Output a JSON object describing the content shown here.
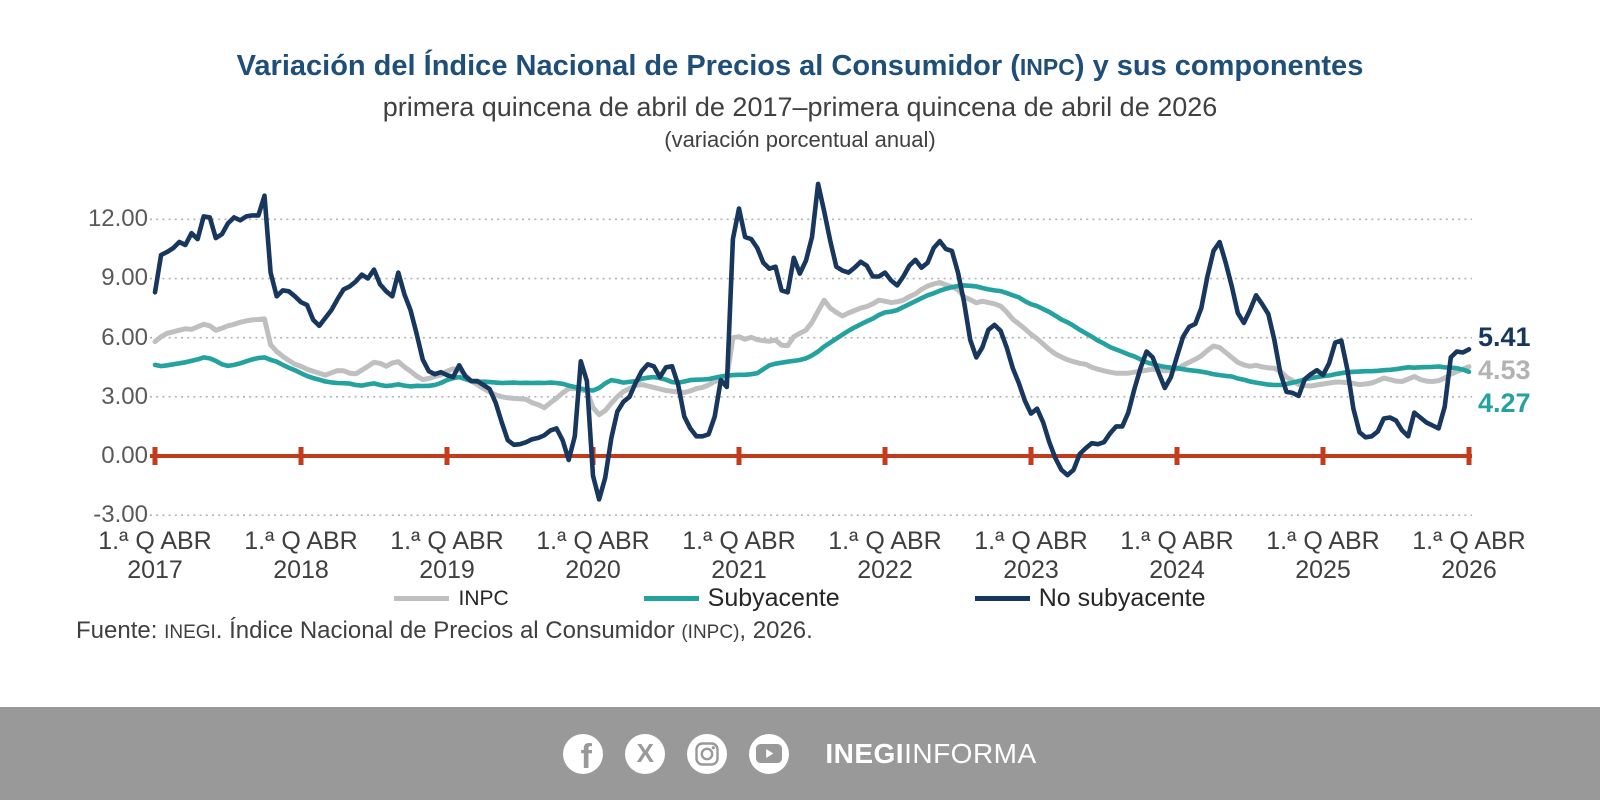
{
  "theme": {
    "title_color": "#1f4e79",
    "text_color": "#404040",
    "ytick_color": "#595959",
    "gridline_color": "#b3b3b3",
    "zero_axis_color": "#c23b1c",
    "footer_bg": "#999999",
    "background": "#ffffff"
  },
  "chart_data": {
    "type": "line",
    "title_pre": "Variación del Índice Nacional de Precios al Consumidor (",
    "title_acronym": "INPC",
    "title_post": ") y sus componentes",
    "subtitle": "primera quincena de abril de 2017–primera quincena de abril de 2026",
    "note": "(variación porcentual anual)",
    "unit": "%",
    "x_frequency": "quincenal (24 puntos por año, de 1.ª Q ABR 2017 a 1.ª Q ABR 2026)",
    "ylim": [
      -3,
      12
    ],
    "grid": "horizontal-dotted",
    "legend_position": "bottom-center",
    "y_ticks": [
      12,
      9,
      6,
      3,
      0,
      -3
    ],
    "y_tick_labels": [
      "12.00",
      "9.00",
      "6.00",
      "3.00",
      "0.00",
      "-3.00"
    ],
    "x_ticks": [
      {
        "label": "1.ª Q ABR",
        "year": "2017"
      },
      {
        "label": "1.ª Q ABR",
        "year": "2018"
      },
      {
        "label": "1.ª Q ABR",
        "year": "2019"
      },
      {
        "label": "1.ª Q ABR",
        "year": "2020"
      },
      {
        "label": "1.ª Q ABR",
        "year": "2021"
      },
      {
        "label": "1.ª Q ABR",
        "year": "2022"
      },
      {
        "label": "1.ª Q ABR",
        "year": "2023"
      },
      {
        "label": "1.ª Q ABR",
        "year": "2024"
      },
      {
        "label": "1.ª Q ABR",
        "year": "2025"
      },
      {
        "label": "1.ª Q ABR",
        "year": "2026"
      }
    ],
    "zero_axis_color": "#c23b1c",
    "series": [
      {
        "name": "INPC",
        "color": "#bfbfbf",
        "end_label": "4.53",
        "end_label_color": "#b3b3b3",
        "values": [
          5.8,
          6.05,
          6.22,
          6.3,
          6.38,
          6.45,
          6.42,
          6.55,
          6.68,
          6.6,
          6.38,
          6.48,
          6.6,
          6.68,
          6.78,
          6.85,
          6.9,
          6.92,
          6.95,
          5.64,
          5.3,
          5.05,
          4.85,
          4.65,
          4.55,
          4.4,
          4.3,
          4.2,
          4.1,
          4.22,
          4.33,
          4.32,
          4.2,
          4.17,
          4.35,
          4.55,
          4.75,
          4.7,
          4.55,
          4.72,
          4.78,
          4.52,
          4.3,
          4.05,
          3.88,
          3.93,
          4.03,
          4.12,
          4.3,
          4.42,
          4.38,
          4.1,
          3.8,
          3.62,
          3.42,
          3.25,
          3.1,
          3.0,
          2.95,
          2.92,
          2.9,
          2.87,
          2.7,
          2.6,
          2.45,
          2.7,
          2.93,
          3.2,
          3.42,
          3.42,
          3.35,
          3.3,
          2.45,
          2.1,
          2.3,
          2.68,
          3.0,
          3.27,
          3.42,
          3.58,
          3.62,
          3.55,
          3.48,
          3.4,
          3.32,
          3.28,
          3.25,
          3.22,
          3.3,
          3.42,
          3.48,
          3.6,
          3.78,
          3.85,
          3.95,
          6.0,
          6.05,
          5.92,
          6.02,
          5.9,
          5.85,
          5.82,
          5.88,
          5.62,
          5.6,
          6.05,
          6.22,
          6.38,
          6.78,
          7.35,
          7.9,
          7.5,
          7.28,
          7.1,
          7.25,
          7.38,
          7.5,
          7.58,
          7.72,
          7.9,
          7.85,
          7.78,
          7.82,
          7.9,
          8.08,
          8.22,
          8.45,
          8.62,
          8.72,
          8.8,
          8.68,
          8.58,
          8.44,
          8.07,
          7.93,
          7.77,
          7.85,
          7.78,
          7.72,
          7.6,
          7.3,
          6.93,
          6.7,
          6.45,
          6.17,
          5.95,
          5.68,
          5.4,
          5.18,
          5.02,
          4.88,
          4.78,
          4.7,
          4.65,
          4.5,
          4.4,
          4.32,
          4.25,
          4.2,
          4.2,
          4.2,
          4.25,
          4.3,
          4.35,
          4.4,
          4.38,
          4.32,
          4.35,
          4.42,
          4.6,
          4.75,
          4.9,
          5.08,
          5.35,
          5.58,
          5.5,
          5.25,
          5.0,
          4.75,
          4.62,
          4.55,
          4.6,
          4.52,
          4.47,
          4.45,
          4.3,
          4.0,
          3.82,
          3.62,
          3.57,
          3.55,
          3.6,
          3.65,
          3.7,
          3.75,
          3.75,
          3.72,
          3.68,
          3.62,
          3.65,
          3.7,
          3.82,
          3.95,
          3.88,
          3.8,
          3.78,
          3.9,
          4.03,
          3.88,
          3.8,
          3.78,
          3.82,
          3.95,
          4.15,
          4.28,
          4.4,
          4.53
        ]
      },
      {
        "name": "Subyacente",
        "color": "#23a2a0",
        "end_label": "4.27",
        "end_label_color": "#23a2a0",
        "values": [
          4.62,
          4.56,
          4.6,
          4.65,
          4.7,
          4.75,
          4.82,
          4.9,
          5.0,
          4.95,
          4.82,
          4.65,
          4.57,
          4.62,
          4.7,
          4.8,
          4.9,
          4.97,
          5.0,
          4.88,
          4.78,
          4.62,
          4.48,
          4.35,
          4.2,
          4.05,
          3.95,
          3.87,
          3.78,
          3.73,
          3.7,
          3.69,
          3.67,
          3.6,
          3.57,
          3.63,
          3.68,
          3.6,
          3.55,
          3.58,
          3.63,
          3.57,
          3.53,
          3.56,
          3.55,
          3.56,
          3.6,
          3.7,
          3.85,
          3.95,
          4.0,
          3.9,
          3.8,
          3.76,
          3.77,
          3.75,
          3.72,
          3.7,
          3.71,
          3.72,
          3.7,
          3.71,
          3.7,
          3.71,
          3.7,
          3.72,
          3.7,
          3.66,
          3.57,
          3.5,
          3.42,
          3.35,
          3.32,
          3.45,
          3.68,
          3.85,
          3.8,
          3.72,
          3.76,
          3.8,
          3.92,
          3.97,
          4.0,
          3.95,
          3.87,
          3.75,
          3.72,
          3.78,
          3.85,
          3.87,
          3.88,
          3.9,
          3.97,
          4.03,
          4.07,
          4.1,
          4.12,
          4.12,
          4.15,
          4.2,
          4.4,
          4.6,
          4.68,
          4.73,
          4.78,
          4.82,
          4.87,
          4.95,
          5.1,
          5.3,
          5.55,
          5.75,
          5.95,
          6.15,
          6.35,
          6.52,
          6.68,
          6.83,
          6.97,
          7.15,
          7.28,
          7.32,
          7.4,
          7.55,
          7.7,
          7.85,
          8.0,
          8.15,
          8.25,
          8.38,
          8.48,
          8.56,
          8.62,
          8.65,
          8.63,
          8.6,
          8.52,
          8.45,
          8.4,
          8.36,
          8.26,
          8.15,
          8.05,
          7.85,
          7.7,
          7.6,
          7.45,
          7.3,
          7.12,
          6.92,
          6.78,
          6.6,
          6.4,
          6.22,
          6.05,
          5.85,
          5.7,
          5.52,
          5.4,
          5.28,
          5.15,
          5.05,
          4.9,
          4.75,
          4.66,
          4.58,
          4.52,
          4.48,
          4.45,
          4.4,
          4.35,
          4.32,
          4.28,
          4.22,
          4.15,
          4.1,
          4.06,
          4.03,
          3.93,
          3.87,
          3.78,
          3.72,
          3.67,
          3.62,
          3.6,
          3.6,
          3.65,
          3.72,
          3.8,
          3.88,
          3.95,
          4.0,
          4.05,
          4.08,
          4.15,
          4.2,
          4.25,
          4.27,
          4.28,
          4.3,
          4.3,
          4.32,
          4.35,
          4.37,
          4.4,
          4.45,
          4.5,
          4.48,
          4.5,
          4.51,
          4.52,
          4.54,
          4.5,
          4.48,
          4.45,
          4.38,
          4.27
        ]
      },
      {
        "name": "No subyacente",
        "color": "#17375e",
        "end_label": "5.41",
        "end_label_color": "#17375e",
        "values": [
          8.3,
          10.2,
          10.35,
          10.55,
          10.85,
          10.7,
          11.3,
          11.0,
          12.15,
          12.1,
          11.05,
          11.25,
          11.8,
          12.1,
          11.95,
          12.15,
          12.2,
          12.2,
          13.2,
          9.3,
          8.1,
          8.4,
          8.35,
          8.1,
          7.8,
          7.65,
          6.9,
          6.6,
          7.0,
          7.4,
          7.95,
          8.45,
          8.6,
          8.85,
          9.2,
          9.0,
          9.45,
          8.7,
          8.35,
          8.1,
          9.3,
          8.2,
          7.4,
          6.2,
          4.9,
          4.3,
          4.15,
          4.25,
          4.1,
          4.0,
          4.6,
          4.05,
          3.8,
          3.8,
          3.6,
          3.4,
          2.7,
          1.7,
          0.8,
          0.57,
          0.6,
          0.7,
          0.85,
          0.92,
          1.05,
          1.3,
          1.4,
          0.8,
          -0.2,
          1.0,
          4.8,
          3.8,
          -1.0,
          -2.2,
          -1.1,
          0.9,
          2.25,
          2.75,
          3.0,
          3.7,
          4.3,
          4.65,
          4.55,
          4.0,
          4.5,
          4.55,
          3.6,
          2.0,
          1.4,
          1.0,
          1.0,
          1.1,
          2.0,
          3.85,
          3.5,
          11.0,
          12.55,
          11.1,
          11.0,
          10.55,
          9.8,
          9.5,
          9.6,
          8.4,
          8.3,
          10.05,
          9.25,
          9.9,
          11.1,
          13.8,
          12.4,
          10.9,
          9.6,
          9.4,
          9.3,
          9.55,
          9.85,
          9.65,
          9.1,
          9.1,
          9.3,
          8.9,
          8.65,
          9.1,
          9.65,
          9.95,
          9.55,
          9.8,
          10.55,
          10.9,
          10.5,
          10.4,
          9.3,
          7.8,
          5.9,
          5.0,
          5.5,
          6.4,
          6.65,
          6.35,
          5.5,
          4.45,
          3.7,
          2.8,
          2.15,
          2.4,
          1.7,
          0.7,
          -0.1,
          -0.7,
          -0.97,
          -0.7,
          0.1,
          0.4,
          0.65,
          0.6,
          0.7,
          1.15,
          1.5,
          1.5,
          2.2,
          3.4,
          4.45,
          5.3,
          5.0,
          4.2,
          3.45,
          4.0,
          5.05,
          6.05,
          6.55,
          6.7,
          7.5,
          9.1,
          10.4,
          10.85,
          9.8,
          8.6,
          7.25,
          6.75,
          7.4,
          8.15,
          7.7,
          7.2,
          5.9,
          4.2,
          3.25,
          3.2,
          3.05,
          3.9,
          4.15,
          4.35,
          4.1,
          4.7,
          5.75,
          5.85,
          4.4,
          2.4,
          1.2,
          0.95,
          1.0,
          1.25,
          1.9,
          1.95,
          1.8,
          1.3,
          1.0,
          2.2,
          1.95,
          1.7,
          1.55,
          1.4,
          2.5,
          5.0,
          5.3,
          5.25,
          5.41
        ]
      }
    ]
  },
  "source": {
    "prefix": "Fuente: ",
    "inegi": "INEGI",
    "middle": ". Índice Nacional de Precios al Consumidor ",
    "inpc": "(INPC)",
    "suffix": ", 2026."
  },
  "footer": {
    "icons": [
      "facebook-icon",
      "x-icon",
      "instagram-icon",
      "youtube-icon"
    ],
    "brand_bold": "INEGI",
    "brand_rest": "INFORMA"
  }
}
